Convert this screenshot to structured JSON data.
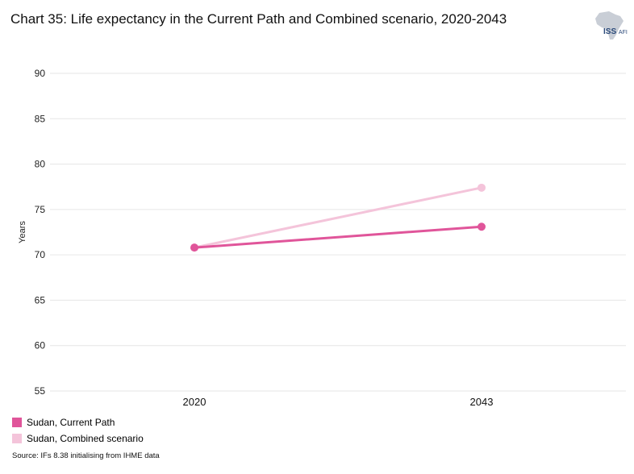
{
  "title": "Chart 35: Life expectancy in the Current Path and Combined scenario, 2020-2043",
  "logo": {
    "text": "ISS",
    "subtext": "AFI",
    "icon": "africa-map-icon"
  },
  "source": "Source: IFs 8.38 initialising from IHME data",
  "colors": {
    "current_path": "#e0559a",
    "combined": "#f4c4da",
    "grid": "#e6e6e6"
  },
  "chart_data": {
    "type": "line",
    "categories": [
      "2020",
      "2043"
    ],
    "ylabel": "Years",
    "xlabel": "",
    "ylim": [
      55,
      90
    ],
    "yticks": [
      55,
      60,
      65,
      70,
      75,
      80,
      85,
      90
    ],
    "grid": true,
    "legend_position": "bottom-left",
    "series": [
      {
        "name": "Sudan, Current Path",
        "values": [
          70.8,
          73.1
        ],
        "color": "#e0559a"
      },
      {
        "name": "Sudan, Combined scenario",
        "values": [
          70.8,
          77.4
        ],
        "color": "#f4c4da"
      }
    ]
  }
}
